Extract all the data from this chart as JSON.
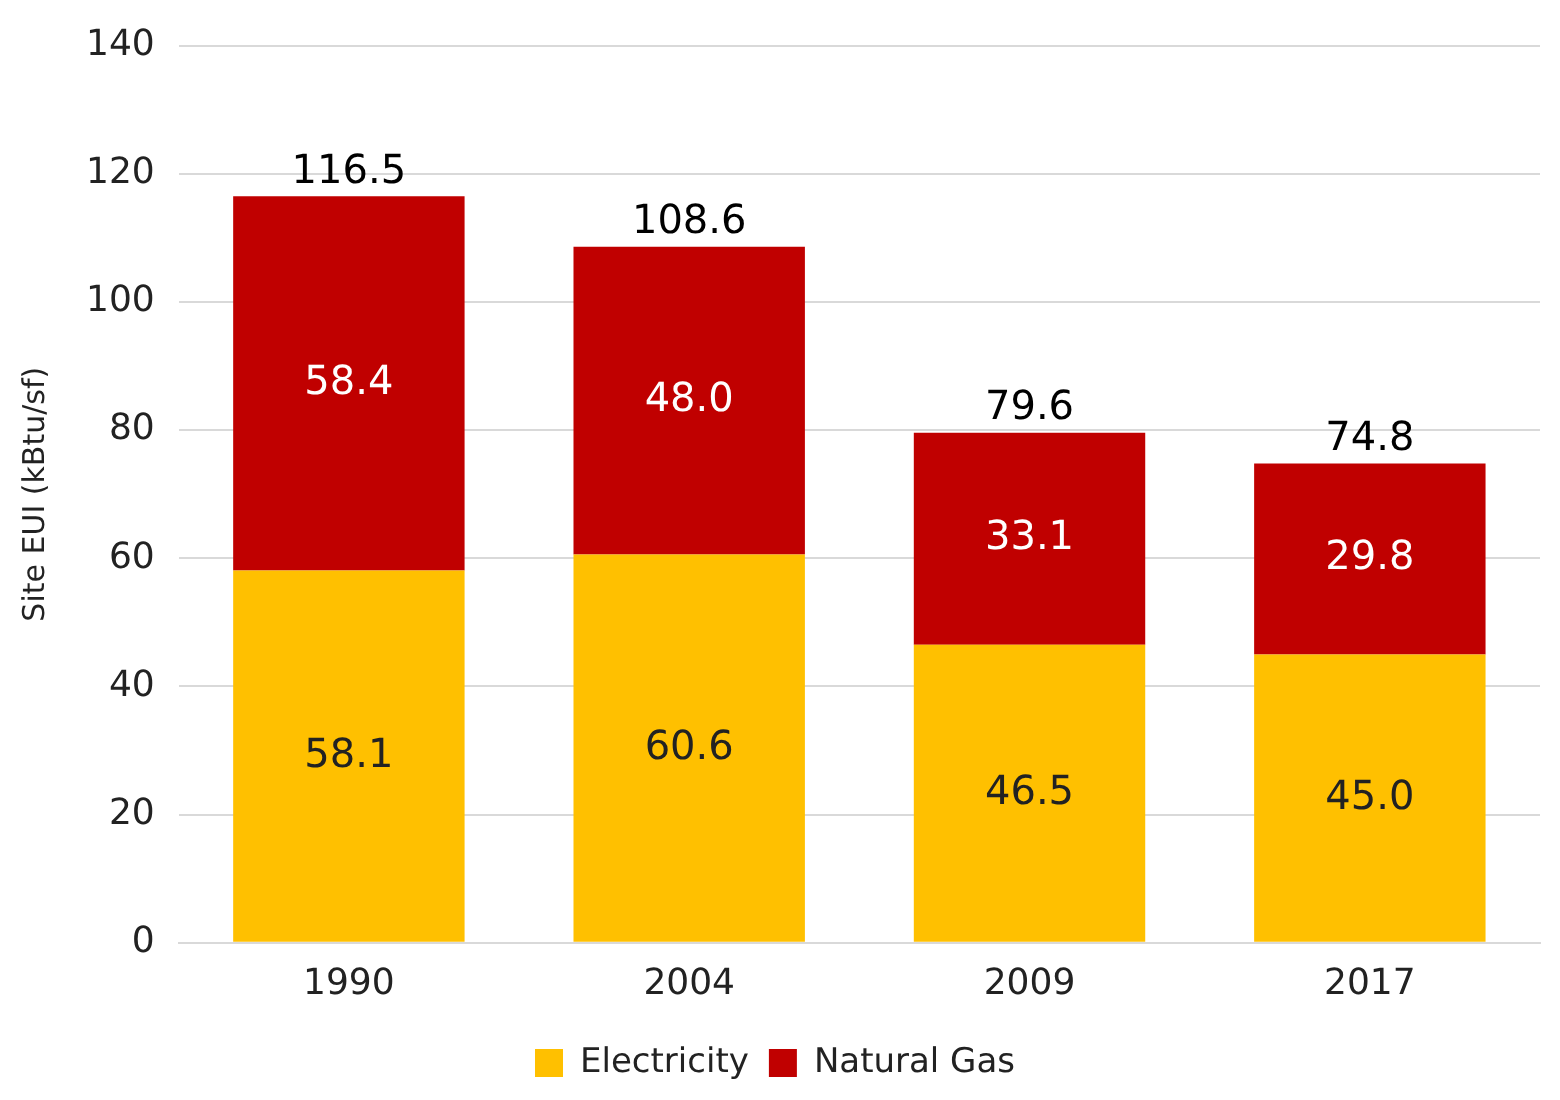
{
  "chart_data": {
    "type": "bar",
    "stacked": true,
    "ylabel": "Site EUI (kBtu/sf)",
    "categories": [
      "1990",
      "2004",
      "2009",
      "2017"
    ],
    "series": [
      {
        "name": "Electricity",
        "color": "#ffc000",
        "values": [
          58.1,
          60.6,
          46.5,
          45.0
        ],
        "value_labels": [
          "58.1",
          "60.6",
          "46.5",
          "45.0"
        ]
      },
      {
        "name": "Natural Gas",
        "color": "#c00000",
        "values": [
          58.4,
          48.0,
          33.1,
          29.8
        ],
        "value_labels": [
          "58.4",
          "48.0",
          "33.1",
          "29.8"
        ]
      }
    ],
    "totals": [
      "116.5",
      "108.6",
      "79.6",
      "74.8"
    ],
    "ylim": [
      0,
      140
    ],
    "yticks": [
      0,
      20,
      40,
      60,
      80,
      100,
      120,
      140
    ],
    "grid": "y",
    "legend": "bottom"
  }
}
